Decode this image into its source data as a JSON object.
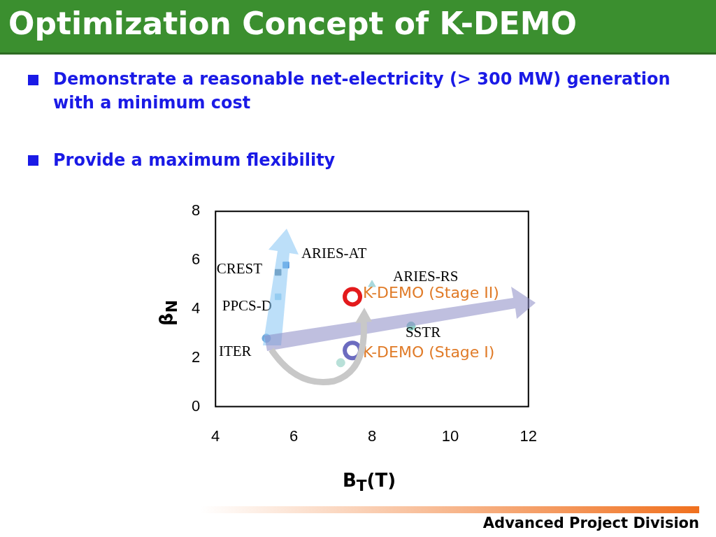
{
  "chart_data": {
    "type": "scatter",
    "title": "Optimization Concept of K-DEMO",
    "subtitle": "Demonstrate a reasonable net-electricity (> 300 MW) generation with a minimum cost",
    "annotations": [
      "Provide a maximum flexibility",
      "Advanced Project Division"
    ],
    "xlabel": "B$_{T}$(T)",
    "ylabel": "β$_{N}$",
    "xlim": [
      4,
      12
    ],
    "xticks": [
      4,
      6,
      8,
      10,
      12
    ],
    "ylim": [
      0,
      8
    ],
    "yticks": [
      0,
      2,
      4,
      6,
      8
    ],
    "grid": false,
    "legend": false,
    "series": [
      {
        "name": "CREST",
        "color": "#50708c",
        "marker": "square",
        "x": [
          5.6
        ],
        "values": [
          5.5
        ]
      },
      {
        "name": "ARIES-AT",
        "color": "#4a90d9",
        "marker": "square",
        "x": [
          5.8
        ],
        "values": [
          5.8
        ]
      },
      {
        "name": "PPCS-D",
        "color": "#9fd0ea",
        "marker": "square",
        "x": [
          5.6
        ],
        "values": [
          4.5
        ]
      },
      {
        "name": "ITER",
        "color": "#6fa8dc",
        "marker": "circle",
        "x": [
          5.3
        ],
        "values": [
          2.8
        ]
      },
      {
        "name": "ARIES-RS",
        "color": "#a8d8dc",
        "marker": "triangle",
        "x": [
          8.0
        ],
        "values": [
          5.0
        ]
      },
      {
        "name": "SSTR",
        "color": "#8fd0c8",
        "marker": "circle",
        "x": [
          9.0
        ],
        "values": [
          3.3
        ]
      },
      {
        "name": "K-DEMO (Stage II)",
        "color": "#e31a1c",
        "marker": "circle",
        "x": [
          7.5
        ],
        "values": [
          4.5
        ]
      },
      {
        "name": "K-DEMO (Stage I)",
        "color": "#6b6bc0",
        "marker": "circle",
        "x": [
          7.5
        ],
        "values": [
          2.3
        ]
      },
      {
        "color": "#b8e0d8",
        "marker": "circle",
        "x": [
          7.2
        ],
        "values": [
          1.8
        ]
      }
    ]
  }
}
